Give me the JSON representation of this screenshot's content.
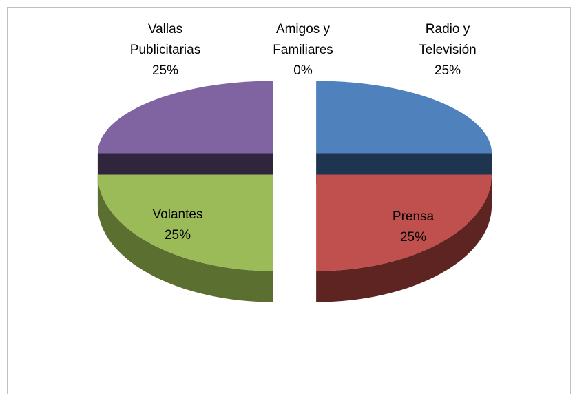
{
  "chart_data": {
    "type": "pie",
    "categories": [
      "Radio y Televisión",
      "Prensa",
      "Volantes",
      "Vallas Publicitarias",
      "Amigos y Familiares"
    ],
    "values": [
      25,
      25,
      25,
      25,
      0
    ],
    "value_labels": [
      "25%",
      "25%",
      "25%",
      "25%",
      "0%"
    ],
    "colors": [
      "#4f81bd",
      "#c0504d",
      "#9bbb59",
      "#8064a2",
      "#4bacc6"
    ],
    "side_colors": [
      "#1f344f",
      "#5e2422",
      "#5b6f30",
      "#2f263d",
      "#276a7c"
    ],
    "exploded": true,
    "three_d": true
  }
}
